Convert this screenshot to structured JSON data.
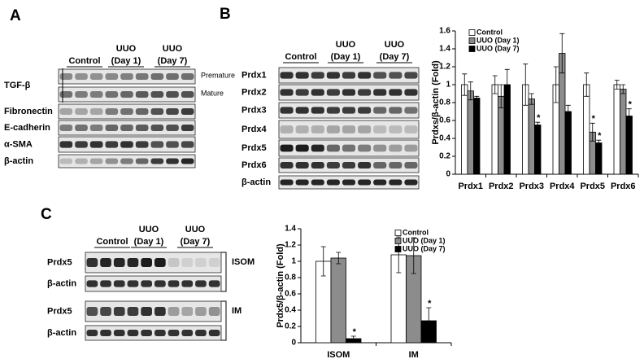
{
  "panel_letters": [
    "A",
    "B",
    "C"
  ],
  "blots": [
    {
      "headers": [
        [
          "Control"
        ],
        [
          "UUO",
          "(Day 1)"
        ],
        [
          "UUO",
          "(Day 7)"
        ]
      ],
      "rows": [
        "TGF-β",
        "Fibronectin",
        "E-cadherin",
        "α-SMA",
        "β-actin"
      ],
      "side_labels": [
        "Premature",
        "Mature"
      ]
    },
    {
      "headers": [
        [
          "Control"
        ],
        [
          "UUO",
          "(Day 1)"
        ],
        [
          "UUO",
          "(Day 7)"
        ]
      ],
      "rows": [
        "Prdx1",
        "Prdx2",
        "Prdx3",
        "Prdx4",
        "Prdx5",
        "Prdx6",
        "β-actin"
      ]
    },
    {
      "headers": [
        [
          "Control"
        ],
        [
          "UUO",
          "(Day 1)"
        ],
        [
          "UUO",
          "(Day 7)"
        ]
      ],
      "rows": [
        "Prdx5",
        "β-actin",
        "Prdx5",
        "β-actin"
      ],
      "side_labels": [
        "ISOM",
        "IM"
      ]
    }
  ],
  "chart_data": [
    {
      "type": "bar",
      "y_label": "Prdxs/β-actin (Fold)",
      "categories": [
        "Prdx1",
        "Prdx2",
        "Prdx3",
        "Prdx4",
        "Prdx5",
        "Prdx6"
      ],
      "series": [
        {
          "name": "Control",
          "color": "#ffffff",
          "values": [
            1.0,
            1.0,
            1.0,
            1.0,
            1.0,
            1.0
          ],
          "errors": [
            0.12,
            0.1,
            0.23,
            0.2,
            0.13,
            0.05
          ],
          "significant": [
            false,
            false,
            false,
            false,
            false,
            false
          ]
        },
        {
          "name": "UUO (Day 1)",
          "color": "#8c8c8c",
          "values": [
            0.93,
            0.87,
            0.84,
            1.35,
            0.47,
            0.95
          ],
          "errors": [
            0.1,
            0.13,
            0.06,
            0.22,
            0.1,
            0.05
          ],
          "significant": [
            false,
            false,
            false,
            false,
            true,
            false
          ]
        },
        {
          "name": "UUO (Day 7)",
          "color": "#000000",
          "values": [
            0.85,
            1.0,
            0.55,
            0.7,
            0.35,
            0.65
          ],
          "errors": [
            0.02,
            0.17,
            0.03,
            0.07,
            0.03,
            0.08
          ],
          "significant": [
            false,
            false,
            true,
            false,
            true,
            true
          ]
        }
      ],
      "significance_label": "*",
      "ylim": [
        0,
        1.6
      ],
      "yticks": [
        0,
        0.2,
        0.4,
        0.6,
        0.8,
        1,
        1.2,
        1.4,
        1.6
      ],
      "legend": "upper left"
    },
    {
      "type": "bar",
      "y_label": "Prdx5/β-actin (Fold)",
      "categories": [
        "ISOM",
        "IM"
      ],
      "series": [
        {
          "name": "Control",
          "color": "#ffffff",
          "values": [
            1.0,
            1.08
          ],
          "errors": [
            0.18,
            0.22
          ],
          "significant": [
            false,
            false
          ]
        },
        {
          "name": "UUO (Day 1)",
          "color": "#8c8c8c",
          "values": [
            1.04,
            1.07
          ],
          "errors": [
            0.07,
            0.22
          ],
          "significant": [
            false,
            false
          ]
        },
        {
          "name": "UUO (Day 7)",
          "color": "#000000",
          "values": [
            0.05,
            0.27
          ],
          "errors": [
            0.03,
            0.16
          ],
          "significant": [
            true,
            true
          ]
        }
      ],
      "significance_label": "*",
      "ylim": [
        0,
        1.4
      ],
      "yticks": [
        0,
        0.2,
        0.4,
        0.6,
        0.8,
        1,
        1.2,
        1.4
      ],
      "legend": "upper right"
    }
  ]
}
